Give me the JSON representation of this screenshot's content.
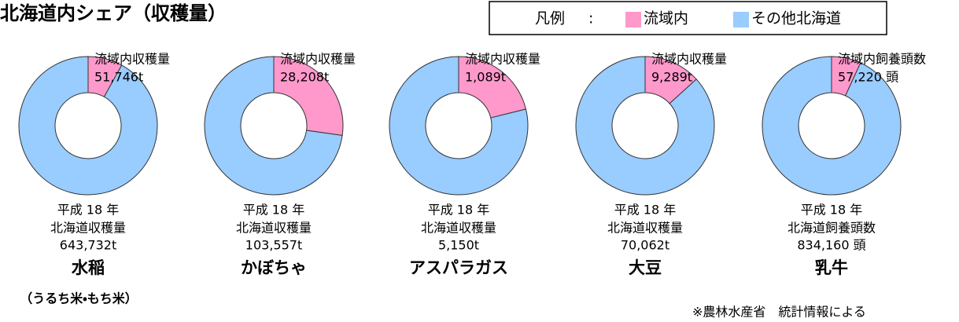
{
  "title": "北海道内シェア（収穫量）",
  "legend": {
    "label": "凡例",
    "separator": ":",
    "entries": [
      {
        "name": "流域内",
        "color": "#ff99cc"
      },
      {
        "name": "その他北海道",
        "color": "#99ccff"
      }
    ]
  },
  "note": "※農林水産省　統計情報による",
  "chart_data": [
    {
      "type": "pie",
      "donut": true,
      "title": "水稲",
      "subtitle": "（うるち米・もち米）",
      "inner_label": "流域内収穫量",
      "value": 51746,
      "value_label": "51,746t",
      "year_label": "平成 18 年",
      "total_name": "北海道収穫量",
      "total": 643732,
      "total_label": "643,732t"
    },
    {
      "type": "pie",
      "donut": true,
      "title": "かぼちゃ",
      "inner_label": "流域内収穫量",
      "value": 28208,
      "value_label": "28,208t",
      "year_label": "平成 18 年",
      "total_name": "北海道収穫量",
      "total": 103557,
      "total_label": "103,557t"
    },
    {
      "type": "pie",
      "donut": true,
      "title": "アスパラガス",
      "inner_label": "流域内収穫量",
      "value": 1089,
      "value_label": "1,089t",
      "year_label": "平成 18 年",
      "total_name": "北海道収穫量",
      "total": 5150,
      "total_label": "5,150t"
    },
    {
      "type": "pie",
      "donut": true,
      "title": "大豆",
      "inner_label": "流域内収穫量",
      "value": 9289,
      "value_label": "9,289t",
      "year_label": "平成 18 年",
      "total_name": "北海道収穫量",
      "total": 70062,
      "total_label": "70,062t"
    },
    {
      "type": "pie",
      "donut": true,
      "title": "乳牛",
      "inner_label": "流域内飼養頭数",
      "value": 57220,
      "value_label": "57,220 頭",
      "year_label": "平成 18 年",
      "total_name": "北海道飼養頭数",
      "total": 834160,
      "total_label": "834,160 頭"
    }
  ]
}
